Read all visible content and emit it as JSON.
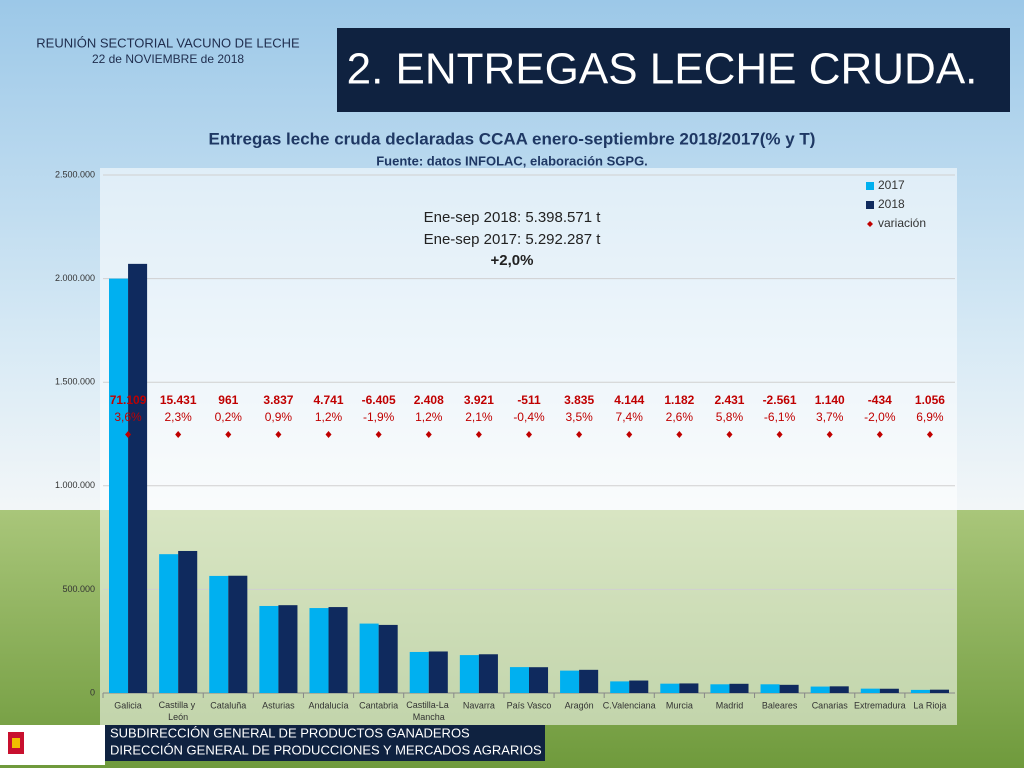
{
  "header": {
    "title": "REUNIÓN SECTORIAL VACUNO DE LECHE",
    "date": "22 de NOVIEMBRE de 2018"
  },
  "slide_title": "2. ENTREGAS LECHE CRUDA.",
  "footer": {
    "line1": "SUBDIRECCIÓN GENERAL DE PRODUCTOS GANADEROS",
    "line2": "DIRECCIÓN GENERAL DE PRODUCCIONES Y MERCADOS AGRARIOS"
  },
  "chart_data": {
    "type": "bar",
    "title": "Entregas leche cruda declaradas CCAA enero-septiembre 2018/2017(% y T)",
    "subtitle": "Fuente: datos INFOLAC, elaboración SGPG.",
    "annotations": [
      "Ene-sep 2018: 5.398.571 t",
      "Ene-sep 2017: 5.292.287 t",
      "+2,0%"
    ],
    "categories": [
      "Galicia",
      "Castilla y León",
      "Cataluña",
      "Asturias",
      "Andalucía",
      "Cantabria",
      "Castilla-La Mancha",
      "Navarra",
      "País Vasco",
      "Aragón",
      "C.Valenciana",
      "Murcia",
      "Madrid",
      "Baleares",
      "Canarias",
      "Extremadura",
      "La Rioja"
    ],
    "series": [
      {
        "name": "2017",
        "color": "#00b0f0",
        "values": [
          2000000,
          670000,
          565000,
          420000,
          410000,
          335000,
          198000,
          183000,
          125000,
          108000,
          56000,
          45000,
          42000,
          42000,
          31000,
          21000,
          15000
        ]
      },
      {
        "name": "2018",
        "color": "#0f2a5e",
        "values": [
          2071109,
          685431,
          565961,
          423837,
          414741,
          328595,
          200408,
          186921,
          124489,
          111835,
          60144,
          46182,
          44431,
          39439,
          32140,
          20566,
          16056
        ]
      },
      {
        "name": "variación",
        "color": "#c00000",
        "values": [
          3.6,
          2.3,
          0.2,
          0.9,
          1.2,
          -1.9,
          1.2,
          2.1,
          -0.4,
          3.5,
          7.4,
          2.6,
          5.8,
          -6.1,
          3.7,
          -2.0,
          6.9
        ],
        "value_labels": [
          "3,6%",
          "2,3%",
          "0,2%",
          "0,9%",
          "1,2%",
          "-1,9%",
          "1,2%",
          "2,1%",
          "-0,4%",
          "3,5%",
          "7,4%",
          "2,6%",
          "5,8%",
          "-6,1%",
          "3,7%",
          "-2,0%",
          "6,9%"
        ]
      }
    ],
    "differences": {
      "values": [
        71109,
        15431,
        961,
        3837,
        4741,
        -6405,
        2408,
        3921,
        -511,
        3835,
        4144,
        1182,
        2431,
        -2561,
        1140,
        -434,
        1056
      ],
      "value_labels": [
        "71.109",
        "15.431",
        "961",
        "3.837",
        "4.741",
        "-6.405",
        "2.408",
        "3.921",
        "-511",
        "3.835",
        "4.144",
        "1.182",
        "2.431",
        "-2.561",
        "1.140",
        "-434",
        "1.056"
      ]
    },
    "ylim": [
      0,
      2500000
    ],
    "yticks": [
      0,
      {
        "value": 500000,
        "label": "500.000"
      },
      {
        "value": 1000000,
        "label": "1.000.000"
      },
      {
        "value": 1500000,
        "label": "1.500.000"
      },
      {
        "value": 2000000,
        "label": "2.000.000"
      },
      {
        "value": 2500000,
        "label": "2.500.000"
      }
    ],
    "grid": true,
    "legend": "top-right"
  }
}
